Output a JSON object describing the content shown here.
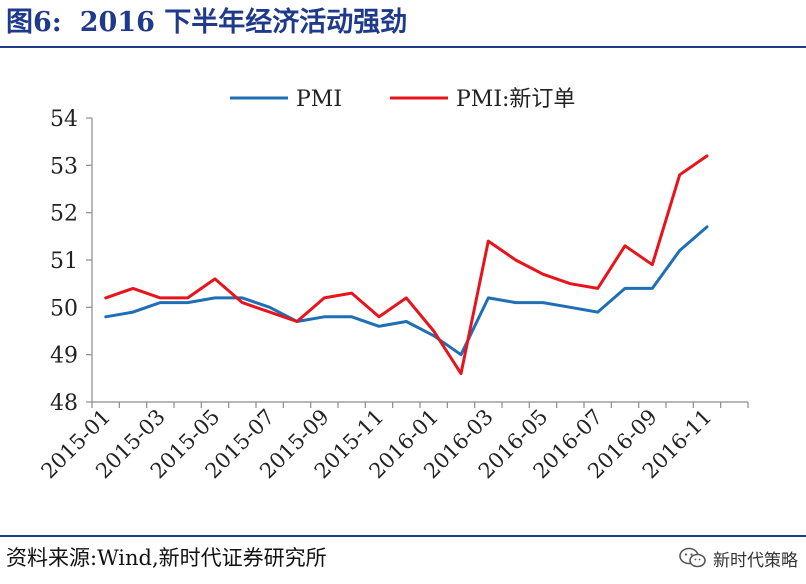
{
  "header": {
    "figure_label": "图6:",
    "title": "2016 下半年经济活动强劲"
  },
  "footer": {
    "source": "资料来源:Wind,新时代证券研究所",
    "brand": "新时代策略"
  },
  "icons": {
    "brand_icon": "wechat-icon"
  },
  "colors": {
    "pmi": "#1f6fb6",
    "pmi_new_orders": "#e8141c",
    "accent": "#1f3a8a"
  },
  "chart_data": {
    "type": "line",
    "x": [
      "2015-01",
      "2015-02",
      "2015-03",
      "2015-04",
      "2015-05",
      "2015-06",
      "2015-07",
      "2015-08",
      "2015-09",
      "2015-10",
      "2015-11",
      "2015-12",
      "2016-01",
      "2016-02",
      "2016-03",
      "2016-04",
      "2016-05",
      "2016-06",
      "2016-07",
      "2016-08",
      "2016-09",
      "2016-10",
      "2016-11",
      "2016-12"
    ],
    "x_tick_labels": [
      "2015-01",
      "2015-03",
      "2015-05",
      "2015-07",
      "2015-09",
      "2015-11",
      "2016-01",
      "2016-03",
      "2016-05",
      "2016-07",
      "2016-09",
      "2016-11"
    ],
    "series": [
      {
        "name": "PMI",
        "color": "#1f6fb6",
        "values": [
          49.8,
          49.9,
          50.1,
          50.1,
          50.2,
          50.2,
          50.0,
          49.7,
          49.8,
          49.8,
          49.6,
          49.7,
          49.4,
          49.0,
          50.2,
          50.1,
          50.1,
          50.0,
          49.9,
          50.4,
          50.4,
          51.2,
          51.7,
          null
        ]
      },
      {
        "name": "PMI:新订单",
        "color": "#e8141c",
        "values": [
          50.2,
          50.4,
          50.2,
          50.2,
          50.6,
          50.1,
          49.9,
          49.7,
          50.2,
          50.3,
          49.8,
          50.2,
          49.5,
          48.6,
          51.4,
          51.0,
          50.7,
          50.5,
          50.4,
          51.3,
          50.9,
          52.8,
          53.2,
          null
        ]
      }
    ],
    "y_ticks": [
      48,
      49,
      50,
      51,
      52,
      53,
      54
    ],
    "ylim": [
      48,
      54
    ],
    "xlabel": "",
    "ylabel": "",
    "grid": false,
    "legend_position": "top-center"
  }
}
